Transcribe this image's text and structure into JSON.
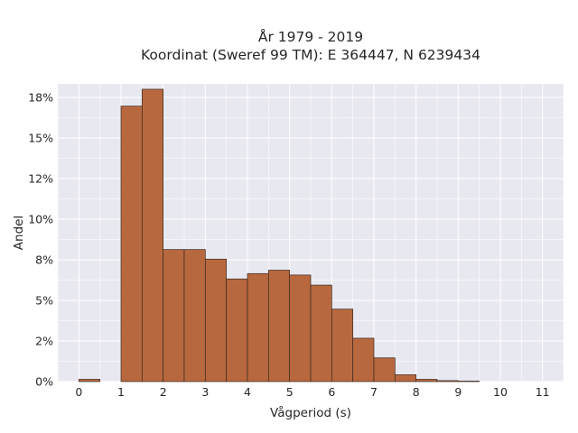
{
  "chart_data": {
    "type": "bar",
    "title_lines": [
      "År 1979 - 2019",
      "Koordinat (Sweref 99 TM): E 364447, N 6239434"
    ],
    "xlabel": "Vågperiod (s)",
    "ylabel": "Andel",
    "xlim": [
      -0.5,
      11.5
    ],
    "ylim": [
      0,
      0.1833
    ],
    "x_ticks": [
      0,
      1,
      2,
      3,
      4,
      5,
      6,
      7,
      8,
      9,
      10,
      11
    ],
    "x_tick_labels": [
      "0",
      "1",
      "2",
      "3",
      "4",
      "5",
      "6",
      "7",
      "8",
      "9",
      "10",
      "11"
    ],
    "y_ticks": [
      0,
      0.025,
      0.05,
      0.075,
      0.1,
      0.125,
      0.15,
      0.175
    ],
    "y_tick_labels": [
      "0%",
      "2%",
      "5%",
      "8%",
      "10%",
      "12%",
      "15%",
      "18%"
    ],
    "bin_width": 0.5,
    "bins": [
      {
        "x0": 0.0,
        "value": 0.0014
      },
      {
        "x0": 1.0,
        "value": 0.1696
      },
      {
        "x0": 1.5,
        "value": 0.18
      },
      {
        "x0": 2.0,
        "value": 0.0813
      },
      {
        "x0": 2.5,
        "value": 0.0813
      },
      {
        "x0": 3.0,
        "value": 0.0754
      },
      {
        "x0": 3.5,
        "value": 0.0632
      },
      {
        "x0": 4.0,
        "value": 0.0665
      },
      {
        "x0": 4.5,
        "value": 0.0686
      },
      {
        "x0": 5.0,
        "value": 0.0656
      },
      {
        "x0": 5.5,
        "value": 0.0594
      },
      {
        "x0": 6.0,
        "value": 0.0446
      },
      {
        "x0": 6.5,
        "value": 0.0267
      },
      {
        "x0": 7.0,
        "value": 0.0146
      },
      {
        "x0": 7.5,
        "value": 0.0042
      },
      {
        "x0": 8.0,
        "value": 0.0014
      },
      {
        "x0": 8.5,
        "value": 0.0006
      },
      {
        "x0": 9.0,
        "value": 0.0003
      }
    ],
    "grid": true,
    "legend": "none",
    "colors": {
      "bar_fill": "#b8683e",
      "bar_edge": "#3a2a20",
      "plot_background": "#e8e8f1",
      "grid": "#ffffff"
    }
  }
}
